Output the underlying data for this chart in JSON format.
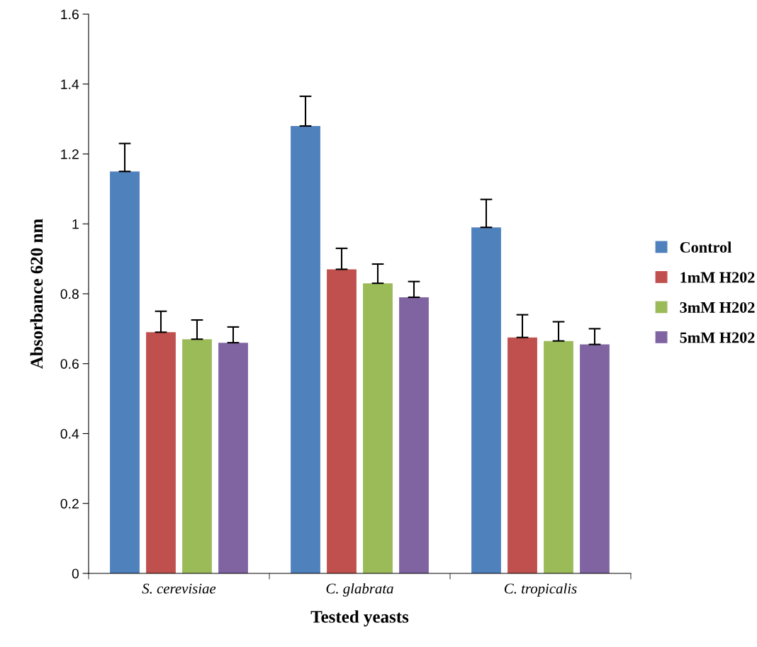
{
  "chart_data": {
    "type": "bar",
    "xlabel": "Tested yeasts",
    "ylabel": "Absorbance 620 nm",
    "categories": [
      "S. cerevisiae",
      "C. glabrata",
      "C. tropicalis"
    ],
    "series": [
      {
        "name": "Control",
        "color": "#4f81bd",
        "values": [
          1.15,
          1.28,
          0.99
        ],
        "errors": [
          [
            1.15,
            1.23
          ],
          [
            1.28,
            1.365
          ],
          [
            0.99,
            1.07
          ]
        ]
      },
      {
        "name": "1mM H202",
        "color": "#c0504d",
        "values": [
          0.69,
          0.87,
          0.675
        ],
        "errors": [
          [
            0.69,
            0.75
          ],
          [
            0.87,
            0.93
          ],
          [
            0.675,
            0.74
          ]
        ]
      },
      {
        "name": "3mM H202",
        "color": "#9bbb59",
        "values": [
          0.67,
          0.83,
          0.665
        ],
        "errors": [
          [
            0.67,
            0.725
          ],
          [
            0.83,
            0.885
          ],
          [
            0.665,
            0.72
          ]
        ]
      },
      {
        "name": "5mM H202",
        "color": "#8064a2",
        "values": [
          0.66,
          0.79,
          0.655
        ],
        "errors": [
          [
            0.66,
            0.705
          ],
          [
            0.79,
            0.835
          ],
          [
            0.655,
            0.7
          ]
        ]
      }
    ],
    "ylim": [
      0,
      1.6
    ],
    "yticks": [
      {
        "value": 0,
        "label": "0"
      },
      0.2,
      0.4,
      0.6,
      0.8,
      {
        "value": 1,
        "label": "1"
      },
      1.2,
      1.4,
      1.6
    ],
    "grid": false,
    "legend": "right"
  }
}
